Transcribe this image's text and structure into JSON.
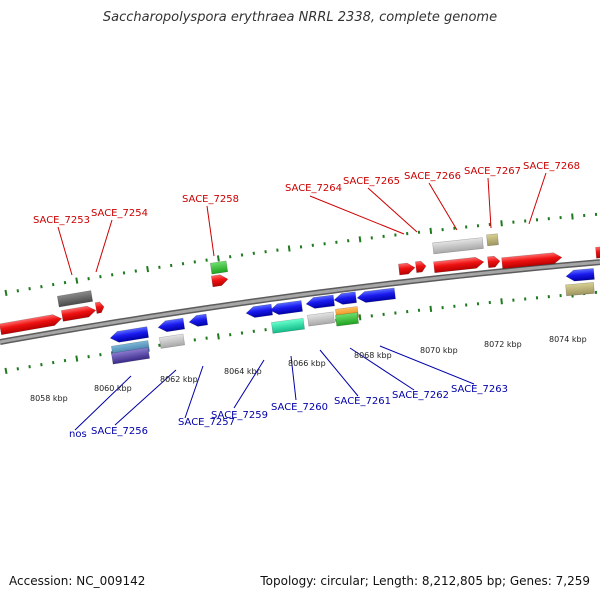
{
  "title": "Saccharopolyspora erythraea NRRL 2338, complete genome",
  "footer": {
    "accession": "Accession: NC_009142",
    "summary": "Topology: circular; Length: 8,212,805 bp; Genes: 7,259"
  },
  "colors": {
    "forward_label": "#cc0000",
    "reverse_label": "#0000aa",
    "backbone": "#8c8c8c",
    "tick": "#1f7a1f"
  },
  "scale_labels": [
    "8058 kbp",
    "8060 kbp",
    "8062 kbp",
    "8064 kbp",
    "8066 kbp",
    "8068 kbp",
    "8070 kbp",
    "8072 kbp",
    "8074 kbp"
  ],
  "forward_labels": [
    "SACE_7253",
    "SACE_7254",
    "SACE_7258",
    "SACE_7264",
    "SACE_7265",
    "SACE_7266",
    "SACE_7267",
    "SACE_7268"
  ],
  "reverse_labels": [
    "nos",
    "SACE_7256",
    "SACE_7257",
    "SACE_7259",
    "SACE_7260",
    "SACE_7261",
    "SACE_7262",
    "SACE_7263"
  ]
}
